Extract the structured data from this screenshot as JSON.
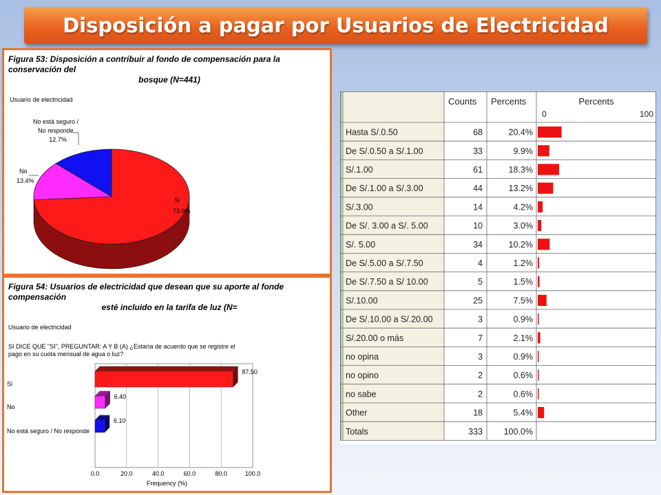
{
  "slide": {
    "title": "Disposición a pagar por Usuarios de Electricidad"
  },
  "figure53": {
    "title_line1": "Figura 53: Disposición a contribuir al  fondo de compensación para la conservación del",
    "title_line2": "bosque (N=441)",
    "caption": "Usuario de electricidad",
    "chart_data": {
      "type": "pie",
      "categories": [
        "Si",
        "No",
        "No está seguro / No responde"
      ],
      "labels": [
        "Si",
        "No",
        "No está seguro /\nNo responde"
      ],
      "values": [
        73.9,
        13.4,
        12.7
      ],
      "value_labels": [
        "73.9%",
        "13.4%",
        "12.7%"
      ],
      "colors": [
        "#ff1a1a",
        "#ff2bff",
        "#1010f0"
      ]
    }
  },
  "figure54": {
    "title_line1": "Figura 54: Usuarios de electricidad que desean que su aporte al fonde compensación",
    "title_line2": "esté incluido en la tarifa de luz (N=",
    "caption": "Usuario de electricidad",
    "question_line1": "SI DICE QUE \"SI\", PREGUNTAR: A Y B (A) ¿Estaría de acuerdo que se registre el",
    "question_line2": "pago en su cuota mensual de agua o luz?",
    "chart_data": {
      "type": "bar",
      "orientation": "horizontal",
      "categories": [
        "Si",
        "No",
        "No está seguro / No responde"
      ],
      "values": [
        87.5,
        6.4,
        6.1
      ],
      "value_labels": [
        "87.50",
        "6.40",
        "6.10"
      ],
      "colors": [
        "#ff1a1a",
        "#ff2bff",
        "#1010f0"
      ],
      "xlabel": "Frequency (%)",
      "xlim": [
        0,
        100
      ],
      "xticks": [
        "0.0",
        "20.0",
        "40.0",
        "60.0",
        "80.0",
        "100.0"
      ]
    }
  },
  "table": {
    "headers": {
      "counts": "Counts",
      "percents": "Percents",
      "bar": "Percents",
      "bar_min": "0",
      "bar_max": "100"
    },
    "chart_data": {
      "type": "table",
      "rows": [
        {
          "label": "Hasta S/.0.50",
          "count": "68",
          "percent": "20.4%",
          "value": 20.4
        },
        {
          "label": "De S/.0.50 a S/.1.00",
          "count": "33",
          "percent": "9.9%",
          "value": 9.9
        },
        {
          "label": "S/.1.00",
          "count": "61",
          "percent": "18.3%",
          "value": 18.3
        },
        {
          "label": "De S/.1.00 a S/.3.00",
          "count": "44",
          "percent": "13.2%",
          "value": 13.2
        },
        {
          "label": "S/.3.00",
          "count": "14",
          "percent": "4.2%",
          "value": 4.2
        },
        {
          "label": "De S/. 3.00 a S/. 5.00",
          "count": "10",
          "percent": "3.0%",
          "value": 3.0
        },
        {
          "label": "S/. 5.00",
          "count": "34",
          "percent": "10.2%",
          "value": 10.2
        },
        {
          "label": "De S/.5.00 a S/.7.50",
          "count": "4",
          "percent": "1.2%",
          "value": 1.2
        },
        {
          "label": "De S/.7.50 a S/ 10.00",
          "count": "5",
          "percent": "1.5%",
          "value": 1.5
        },
        {
          "label": "S/.10.00",
          "count": "25",
          "percent": "7.5%",
          "value": 7.5
        },
        {
          "label": "De S/.10.00 a S/.20.00",
          "count": "3",
          "percent": "0.9%",
          "value": 0.9
        },
        {
          "label": "S/.20.00 o más",
          "count": "7",
          "percent": "2.1%",
          "value": 2.1
        },
        {
          "label": "no opina",
          "count": "3",
          "percent": "0.9%",
          "value": 0.9
        },
        {
          "label": "no opino",
          "count": "2",
          "percent": "0.6%",
          "value": 0.6
        },
        {
          "label": "no sabe",
          "count": "2",
          "percent": "0.6%",
          "value": 0.6
        },
        {
          "label": "Other",
          "count": "18",
          "percent": "5.4%",
          "value": 5.4
        }
      ],
      "total": {
        "label": "Totals",
        "count": "333",
        "percent": "100.0%"
      },
      "bar_color": "#ee1111"
    }
  }
}
